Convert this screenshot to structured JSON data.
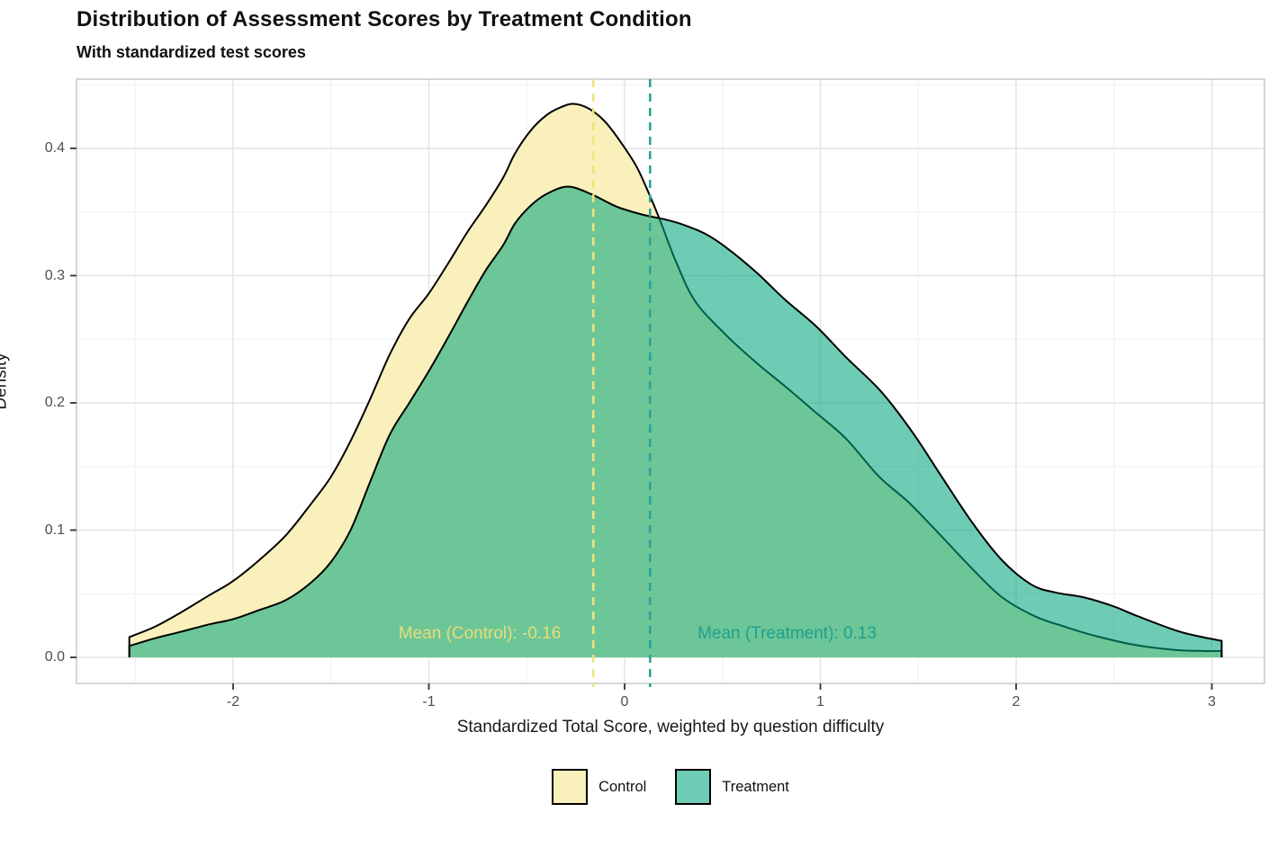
{
  "header": {
    "title": "Distribution of Assessment Scores by Treatment Condition",
    "subtitle": "With standardized test scores"
  },
  "chart_data": {
    "type": "area",
    "subtype": "overlapping-density-curves",
    "title": "Distribution of Assessment Scores by Treatment Condition",
    "subtitle": "With standardized test scores",
    "xlabel": "Standardized Total Score, weighted by question difficulty",
    "ylabel": "Density",
    "xlim": [
      -2.8,
      3.27
    ],
    "ylim": [
      0,
      0.4545
    ],
    "x_ticks": [
      -2,
      -1,
      0,
      1,
      2,
      3
    ],
    "y_ticks": [
      0.0,
      0.1,
      0.2,
      0.3,
      0.4
    ],
    "x_minor": [
      -2.5,
      -1.5,
      -0.5,
      0.5,
      1.5,
      2.5
    ],
    "y_minor": [
      0.05,
      0.15,
      0.25,
      0.35,
      0.45
    ],
    "grid": "on",
    "legend_position": "bottom",
    "colors": {
      "control_fill": "#FAF0BC",
      "treatment_fill": "rgba(0,166,125,0.57)",
      "curve_stroke": "#000000",
      "control_mean_line": "#EFE37D",
      "treatment_mean_line": "#29A399",
      "control_mean_text": "#EBDC78",
      "treatment_mean_text": "#21A08E",
      "grid_major": "#E3E3E3",
      "grid_minor": "#F2F2F2",
      "panel_border": "#C8C8C8"
    },
    "series": [
      {
        "name": "Control",
        "points": [
          [
            -2.53,
            0.016
          ],
          [
            -2.4,
            0.024
          ],
          [
            -2.27,
            0.035
          ],
          [
            -2.12,
            0.049
          ],
          [
            -2.0,
            0.06
          ],
          [
            -1.87,
            0.076
          ],
          [
            -1.73,
            0.096
          ],
          [
            -1.6,
            0.121
          ],
          [
            -1.5,
            0.142
          ],
          [
            -1.4,
            0.17
          ],
          [
            -1.3,
            0.203
          ],
          [
            -1.2,
            0.238
          ],
          [
            -1.1,
            0.266
          ],
          [
            -1.0,
            0.286
          ],
          [
            -0.9,
            0.31
          ],
          [
            -0.8,
            0.335
          ],
          [
            -0.71,
            0.355
          ],
          [
            -0.62,
            0.377
          ],
          [
            -0.56,
            0.396
          ],
          [
            -0.48,
            0.414
          ],
          [
            -0.4,
            0.426
          ],
          [
            -0.33,
            0.432
          ],
          [
            -0.26,
            0.435
          ],
          [
            -0.18,
            0.431
          ],
          [
            -0.1,
            0.421
          ],
          [
            -0.02,
            0.405
          ],
          [
            0.06,
            0.386
          ],
          [
            0.12,
            0.366
          ],
          [
            0.18,
            0.344
          ],
          [
            0.26,
            0.312
          ],
          [
            0.36,
            0.28
          ],
          [
            0.52,
            0.253
          ],
          [
            0.67,
            0.232
          ],
          [
            0.82,
            0.213
          ],
          [
            0.98,
            0.192
          ],
          [
            1.13,
            0.172
          ],
          [
            1.3,
            0.142
          ],
          [
            1.45,
            0.122
          ],
          [
            1.62,
            0.095
          ],
          [
            1.78,
            0.069
          ],
          [
            1.93,
            0.047
          ],
          [
            2.1,
            0.032
          ],
          [
            2.25,
            0.024
          ],
          [
            2.4,
            0.017
          ],
          [
            2.6,
            0.01
          ],
          [
            2.8,
            0.006
          ],
          [
            2.95,
            0.005
          ],
          [
            3.05,
            0.005
          ]
        ]
      },
      {
        "name": "Treatment",
        "points": [
          [
            -2.53,
            0.009
          ],
          [
            -2.4,
            0.015
          ],
          [
            -2.27,
            0.02
          ],
          [
            -2.12,
            0.026
          ],
          [
            -2.0,
            0.03
          ],
          [
            -1.87,
            0.037
          ],
          [
            -1.73,
            0.045
          ],
          [
            -1.6,
            0.059
          ],
          [
            -1.5,
            0.075
          ],
          [
            -1.4,
            0.1
          ],
          [
            -1.3,
            0.138
          ],
          [
            -1.2,
            0.175
          ],
          [
            -1.1,
            0.2
          ],
          [
            -1.0,
            0.225
          ],
          [
            -0.9,
            0.252
          ],
          [
            -0.8,
            0.28
          ],
          [
            -0.71,
            0.304
          ],
          [
            -0.62,
            0.324
          ],
          [
            -0.56,
            0.341
          ],
          [
            -0.48,
            0.355
          ],
          [
            -0.4,
            0.364
          ],
          [
            -0.29,
            0.37
          ],
          [
            -0.17,
            0.364
          ],
          [
            -0.08,
            0.357
          ],
          [
            -0.02,
            0.353
          ],
          [
            0.09,
            0.348
          ],
          [
            0.21,
            0.344
          ],
          [
            0.3,
            0.34
          ],
          [
            0.41,
            0.333
          ],
          [
            0.52,
            0.322
          ],
          [
            0.67,
            0.303
          ],
          [
            0.82,
            0.281
          ],
          [
            0.98,
            0.26
          ],
          [
            1.13,
            0.236
          ],
          [
            1.31,
            0.209
          ],
          [
            1.47,
            0.177
          ],
          [
            1.62,
            0.142
          ],
          [
            1.78,
            0.105
          ],
          [
            1.93,
            0.076
          ],
          [
            2.08,
            0.057
          ],
          [
            2.2,
            0.051
          ],
          [
            2.35,
            0.047
          ],
          [
            2.5,
            0.04
          ],
          [
            2.61,
            0.033
          ],
          [
            2.82,
            0.021
          ],
          [
            2.95,
            0.016
          ],
          [
            3.05,
            0.013
          ]
        ]
      }
    ],
    "means": [
      {
        "label": "Mean (Control): -0.16",
        "value": -0.16,
        "text_x": -0.74,
        "text_y": 0.0185
      },
      {
        "label": "Mean (Treatment): 0.13",
        "value": 0.13,
        "text_x": 0.83,
        "text_y": 0.0185
      }
    ],
    "legend": {
      "entries": [
        {
          "label": "Control",
          "fill": "#FAF0BC"
        },
        {
          "label": "Treatment",
          "fill": "#6ECCB5"
        }
      ]
    }
  }
}
